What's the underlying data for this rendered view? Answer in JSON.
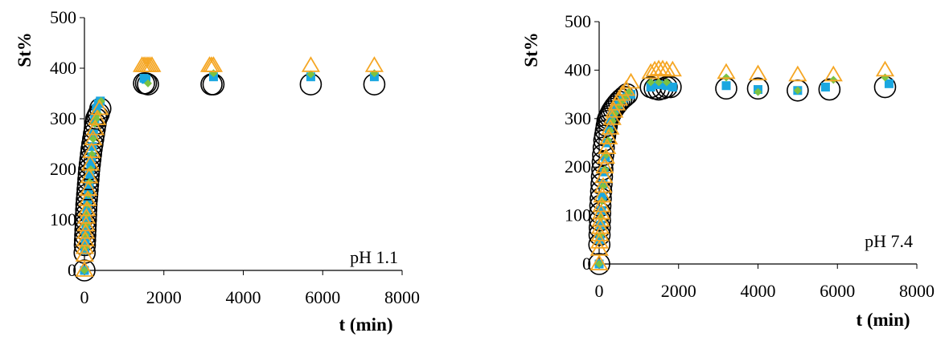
{
  "chart_data": [
    {
      "type": "scatter",
      "xlabel": "t (min)",
      "ylabel": "St%",
      "annotation": "pH 1.1",
      "xlim": [
        0,
        8000
      ],
      "ylim": [
        0,
        500
      ],
      "xticks": [
        0,
        2000,
        4000,
        6000,
        8000
      ],
      "yticks": [
        0,
        100,
        200,
        300,
        400,
        500
      ],
      "grid": false,
      "legend": "none",
      "series": [
        {
          "marker": "circle-open",
          "color": "#000000",
          "x": [
            0,
            5,
            10,
            15,
            20,
            25,
            30,
            35,
            40,
            45,
            50,
            60,
            70,
            80,
            90,
            100,
            110,
            120,
            135,
            150,
            165,
            180,
            200,
            220,
            240,
            260,
            280,
            300,
            330,
            360,
            400,
            1500,
            1550,
            1600,
            3200,
            3250,
            5700,
            7300
          ],
          "y": [
            0,
            35,
            50,
            60,
            70,
            80,
            90,
            100,
            110,
            120,
            130,
            140,
            150,
            160,
            170,
            180,
            190,
            200,
            210,
            220,
            230,
            240,
            250,
            260,
            270,
            280,
            290,
            300,
            305,
            310,
            320,
            370,
            370,
            368,
            368,
            368,
            368,
            368
          ]
        },
        {
          "marker": "square",
          "color": "#1aa7e0",
          "x": [
            0,
            10,
            20,
            30,
            40,
            50,
            60,
            80,
            100,
            120,
            140,
            160,
            180,
            200,
            230,
            260,
            300,
            350,
            400,
            1500,
            1550,
            3250,
            5700,
            7300
          ],
          "y": [
            0,
            40,
            55,
            70,
            85,
            100,
            115,
            130,
            150,
            170,
            190,
            210,
            225,
            245,
            270,
            300,
            320,
            330,
            335,
            380,
            378,
            383,
            383,
            383
          ]
        },
        {
          "marker": "diamond",
          "color": "#7cc242",
          "x": [
            0,
            15,
            30,
            45,
            60,
            80,
            100,
            130,
            160,
            190,
            220,
            260,
            300,
            350,
            420,
            1600,
            3250,
            5700,
            7300
          ],
          "y": [
            0,
            45,
            70,
            90,
            110,
            130,
            150,
            175,
            200,
            230,
            260,
            290,
            300,
            310,
            335,
            370,
            390,
            388,
            390
          ]
        },
        {
          "marker": "triangle-open",
          "color": "#f5a623",
          "x": [
            0,
            5,
            10,
            20,
            30,
            40,
            50,
            60,
            80,
            100,
            120,
            150,
            180,
            220,
            270,
            320,
            380,
            1450,
            1500,
            1550,
            1600,
            1650,
            1700,
            3150,
            3200,
            3250,
            5700,
            7300
          ],
          "y": [
            0,
            30,
            45,
            60,
            75,
            90,
            105,
            120,
            140,
            160,
            185,
            210,
            235,
            260,
            280,
            300,
            320,
            405,
            405,
            405,
            405,
            405,
            405,
            405,
            405,
            405,
            405,
            405
          ]
        }
      ]
    },
    {
      "type": "scatter",
      "xlabel": "t (min)",
      "ylabel": "St%",
      "annotation": "pH 7.4",
      "xlim": [
        0,
        8000
      ],
      "ylim": [
        0,
        500
      ],
      "xticks": [
        0,
        2000,
        4000,
        6000,
        8000
      ],
      "yticks": [
        0,
        100,
        200,
        300,
        400,
        500
      ],
      "grid": false,
      "legend": "none",
      "series": [
        {
          "marker": "circle-open",
          "color": "#000000",
          "x": [
            0,
            5,
            10,
            15,
            20,
            25,
            30,
            40,
            50,
            60,
            70,
            80,
            90,
            100,
            115,
            130,
            150,
            170,
            190,
            210,
            230,
            260,
            290,
            320,
            360,
            400,
            450,
            500,
            560,
            630,
            700,
            1300,
            1400,
            1500,
            1600,
            1700,
            1800,
            3200,
            4000,
            5000,
            5800,
            7200
          ],
          "y": [
            0,
            40,
            60,
            75,
            90,
            105,
            120,
            135,
            150,
            165,
            180,
            195,
            210,
            225,
            240,
            255,
            265,
            275,
            285,
            295,
            300,
            305,
            310,
            315,
            320,
            325,
            330,
            335,
            340,
            345,
            350,
            365,
            362,
            360,
            362,
            365,
            365,
            362,
            362,
            358,
            360,
            365
          ]
        },
        {
          "marker": "square",
          "color": "#1aa7e0",
          "x": [
            0,
            20,
            40,
            60,
            80,
            100,
            130,
            160,
            200,
            250,
            300,
            350,
            400,
            500,
            600,
            700,
            800,
            1300,
            1500,
            1700,
            1850,
            3200,
            4000,
            5000,
            5700,
            7300
          ],
          "y": [
            0,
            50,
            80,
            110,
            140,
            165,
            190,
            220,
            250,
            275,
            295,
            310,
            320,
            330,
            340,
            345,
            350,
            365,
            370,
            368,
            365,
            368,
            360,
            358,
            365,
            372
          ]
        },
        {
          "marker": "diamond",
          "color": "#7cc242",
          "x": [
            0,
            25,
            50,
            75,
            100,
            140,
            180,
            230,
            280,
            340,
            400,
            480,
            560,
            650,
            750,
            1300,
            1500,
            1700,
            3200,
            4000,
            5000,
            5900,
            7200
          ],
          "y": [
            0,
            60,
            95,
            130,
            160,
            195,
            225,
            255,
            275,
            295,
            310,
            325,
            335,
            345,
            355,
            375,
            375,
            375,
            385,
            355,
            358,
            380,
            385
          ]
        },
        {
          "marker": "triangle-open",
          "color": "#f5a623",
          "x": [
            0,
            5,
            10,
            20,
            30,
            40,
            50,
            60,
            80,
            100,
            120,
            140,
            170,
            200,
            240,
            280,
            330,
            380,
            440,
            500,
            580,
            680,
            800,
            1300,
            1400,
            1500,
            1600,
            1700,
            1850,
            3200,
            4000,
            5000,
            5900,
            7200
          ],
          "y": [
            0,
            30,
            45,
            60,
            75,
            90,
            105,
            120,
            140,
            160,
            180,
            200,
            220,
            240,
            260,
            280,
            300,
            315,
            330,
            340,
            350,
            360,
            375,
            395,
            400,
            402,
            402,
            400,
            400,
            395,
            392,
            390,
            390,
            400
          ]
        }
      ]
    }
  ]
}
